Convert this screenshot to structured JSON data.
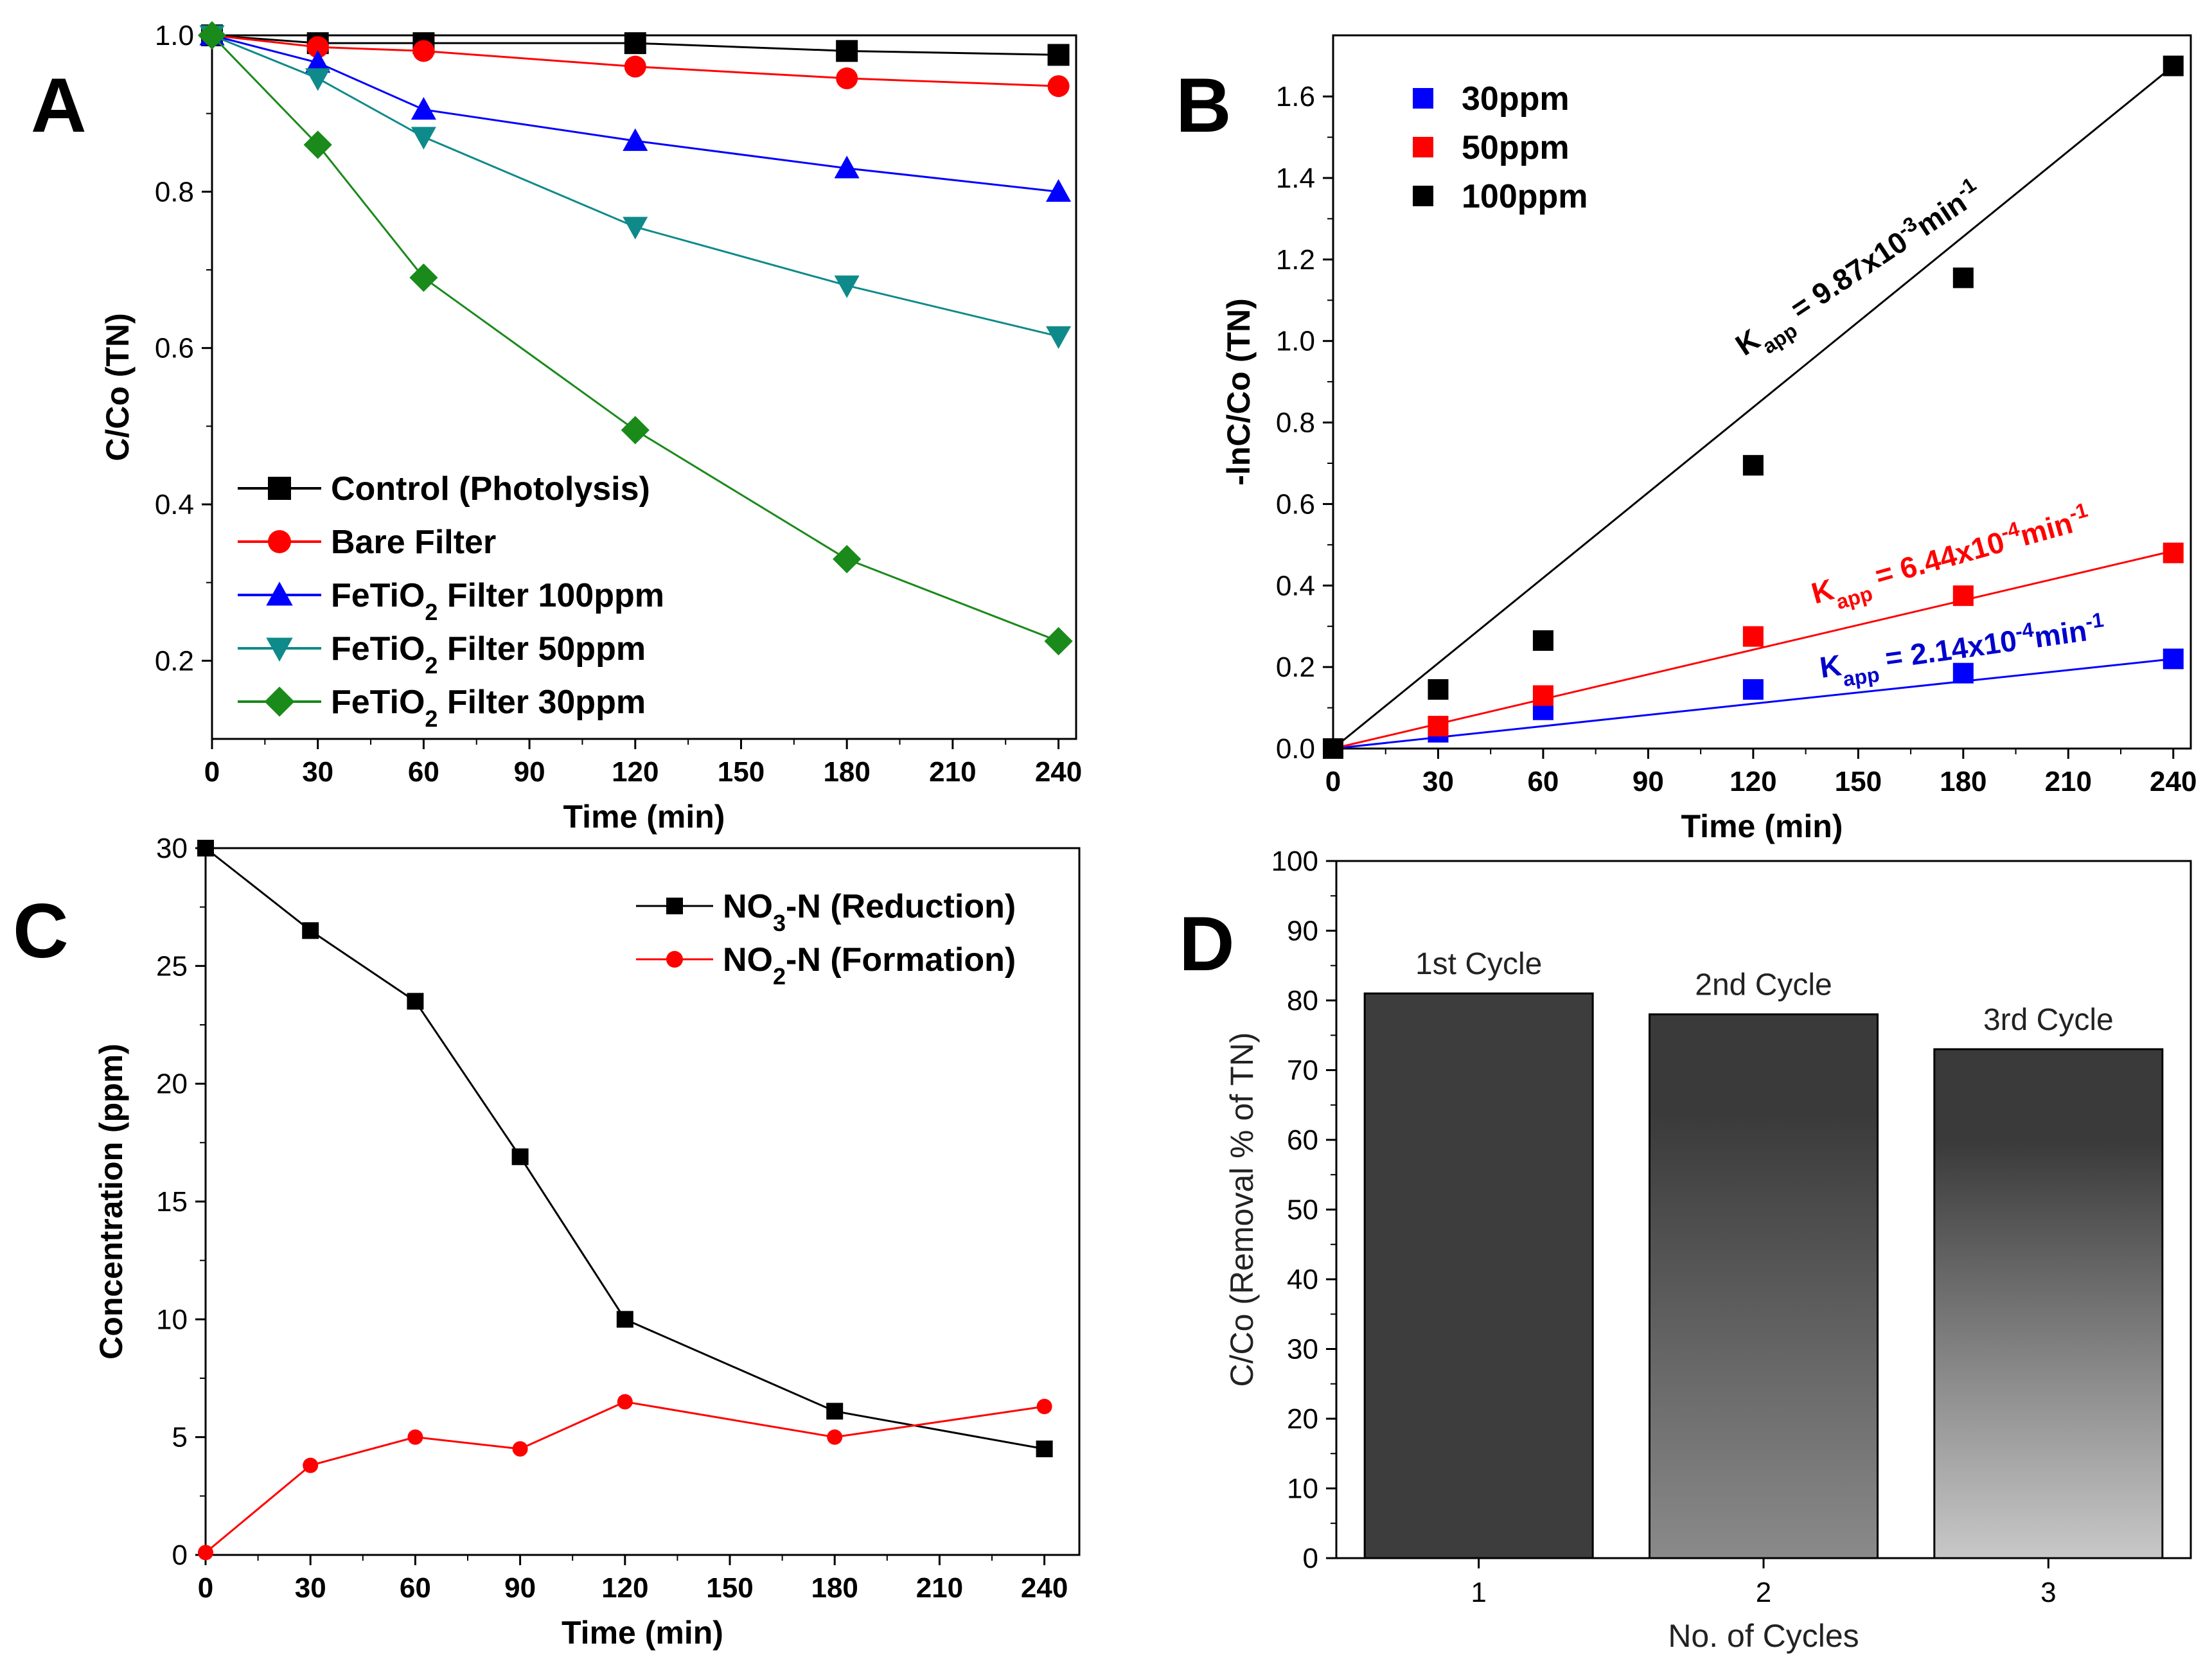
{
  "colors": {
    "black": "#000000",
    "red": "#ff0000",
    "blue": "#0000ff",
    "teal": "#0f8a8a",
    "green": "#1a8a1a",
    "annot_black": "#000000",
    "annot_red": "#ff0000",
    "annot_blue": "#0000cc"
  },
  "chart_data": [
    {
      "id": "A",
      "panel_label": "A",
      "type": "line",
      "xlabel": "Time (min)",
      "ylabel": "C/Co (TN)",
      "xlim": [
        0,
        245
      ],
      "ylim": [
        0.1,
        1.0
      ],
      "x_ticks": [
        0,
        30,
        60,
        90,
        120,
        150,
        180,
        210,
        240
      ],
      "y_ticks": [
        0.2,
        0.4,
        0.6,
        0.8,
        1.0
      ],
      "y_tick_labels": [
        "0.2",
        "0.4",
        "0.6",
        "0.8",
        "1.0"
      ],
      "legend_position": "bottom-left",
      "x": [
        0,
        30,
        60,
        120,
        180,
        240
      ],
      "series": [
        {
          "name": "Control (Photolysis)",
          "marker": "square",
          "color": "#000000",
          "values": [
            1.0,
            0.99,
            0.99,
            0.99,
            0.98,
            0.975
          ]
        },
        {
          "name": "Bare Filter",
          "marker": "circle",
          "color": "#ff0000",
          "values": [
            1.0,
            0.985,
            0.98,
            0.96,
            0.945,
            0.935
          ]
        },
        {
          "name": "FeTiO2 Filter 100ppm",
          "name_parts": [
            "FeTiO",
            "2",
            " Filter 100ppm"
          ],
          "marker": "triangle-up",
          "color": "#0000ff",
          "values": [
            1.0,
            0.965,
            0.905,
            0.865,
            0.83,
            0.8
          ]
        },
        {
          "name": "FeTiO2 Filter 50ppm",
          "name_parts": [
            "FeTiO",
            "2",
            " Filter 50ppm"
          ],
          "marker": "triangle-down",
          "color": "#0f8a8a",
          "values": [
            1.0,
            0.945,
            0.87,
            0.755,
            0.68,
            0.615
          ]
        },
        {
          "name": "FeTiO2 Filter 30ppm",
          "name_parts": [
            "FeTiO",
            "2",
            " Filter 30ppm"
          ],
          "marker": "diamond",
          "color": "#1a8a1a",
          "values": [
            1.0,
            0.86,
            0.69,
            0.495,
            0.33,
            0.225
          ]
        }
      ]
    },
    {
      "id": "B",
      "panel_label": "B",
      "type": "scatter",
      "xlabel": "Time (min)",
      "ylabel": "-lnC/Co (TN)",
      "xlim": [
        0,
        245
      ],
      "ylim": [
        0,
        1.75
      ],
      "x_ticks": [
        0,
        30,
        60,
        90,
        120,
        150,
        180,
        210,
        240
      ],
      "y_ticks": [
        0.0,
        0.2,
        0.4,
        0.6,
        0.8,
        1.0,
        1.2,
        1.4,
        1.6
      ],
      "y_tick_labels": [
        "0.0",
        "0.2",
        "0.4",
        "0.6",
        "0.8",
        "1.0",
        "1.2",
        "1.4",
        "1.6"
      ],
      "legend_position": "top-left",
      "x": [
        0,
        30,
        60,
        120,
        180,
        240
      ],
      "series": [
        {
          "name": "30ppm",
          "color": "#0000ff",
          "values": [
            0,
            0.04,
            0.095,
            0.145,
            0.185,
            0.22
          ],
          "fit_end": 0.22
        },
        {
          "name": "50ppm",
          "color": "#ff0000",
          "values": [
            0,
            0.055,
            0.13,
            0.275,
            0.375,
            0.48
          ],
          "fit_end": 0.485
        },
        {
          "name": "100ppm",
          "color": "#000000",
          "values": [
            0,
            0.145,
            0.265,
            0.695,
            1.155,
            1.675
          ],
          "fit_end": 1.675
        }
      ],
      "annotations": [
        {
          "prefix": "K",
          "sub": "app",
          "text": " = 9.87x10",
          "sup": "-3",
          "tail": "min",
          "tail_sup": "-1",
          "color": "#000000"
        },
        {
          "prefix": "K",
          "sub": "app",
          "text": " = 6.44x10",
          "sup": "-4",
          "tail": "min",
          "tail_sup": "-1",
          "color": "#ff0000"
        },
        {
          "prefix": "K",
          "sub": "app",
          "text": " = 2.14x10",
          "sup": "-4",
          "tail": "min",
          "tail_sup": "-1",
          "color": "#0000cc"
        }
      ]
    },
    {
      "id": "C",
      "panel_label": "C",
      "type": "line",
      "xlabel": "Time (min)",
      "ylabel": "Concentration (ppm)",
      "xlim": [
        0,
        250
      ],
      "ylim": [
        0,
        30
      ],
      "x_ticks": [
        0,
        30,
        60,
        90,
        120,
        150,
        180,
        210,
        240
      ],
      "y_ticks": [
        0,
        5,
        10,
        15,
        20,
        25,
        30
      ],
      "y_tick_labels": [
        "0",
        "5",
        "10",
        "15",
        "20",
        "25",
        "30"
      ],
      "legend_position": "top-right",
      "series": [
        {
          "name": "NO3-N (Reduction)",
          "name_parts": [
            "NO",
            "3",
            "-N (Reduction)"
          ],
          "marker": "square",
          "color": "#000000",
          "x": [
            0,
            30,
            60,
            90,
            120,
            180,
            240
          ],
          "values": [
            30,
            26.5,
            23.5,
            16.9,
            10,
            6.1,
            4.5
          ]
        },
        {
          "name": "NO2-N (Formation)",
          "name_parts": [
            "NO",
            "2",
            "-N (Formation)"
          ],
          "marker": "circle",
          "color": "#ff0000",
          "x": [
            0,
            30,
            60,
            90,
            120,
            180,
            240
          ],
          "values": [
            0.1,
            3.8,
            5.0,
            4.5,
            6.5,
            5.0,
            6.3
          ]
        }
      ]
    },
    {
      "id": "D",
      "panel_label": "D",
      "type": "bar",
      "xlabel": "No. of Cycles",
      "ylabel": "C/Co (Removal % of TN)",
      "ylim": [
        0,
        100
      ],
      "y_ticks": [
        0,
        10,
        20,
        30,
        40,
        50,
        60,
        70,
        80,
        90,
        100
      ],
      "y_tick_labels": [
        "0",
        "10",
        "20",
        "30",
        "40",
        "50",
        "60",
        "70",
        "80",
        "90",
        "100"
      ],
      "categories": [
        "1",
        "2",
        "3"
      ],
      "values": [
        81,
        78,
        73
      ],
      "bar_labels": [
        "1st Cycle",
        "2nd Cycle",
        "3rd Cycle"
      ],
      "fill_gradient": [
        [
          "#3d3d3d",
          "#3d3d3d"
        ],
        [
          "#3a3a3a",
          "#8a8a8a"
        ],
        [
          "#3a3a3a",
          "#c8c8c8"
        ]
      ]
    }
  ]
}
